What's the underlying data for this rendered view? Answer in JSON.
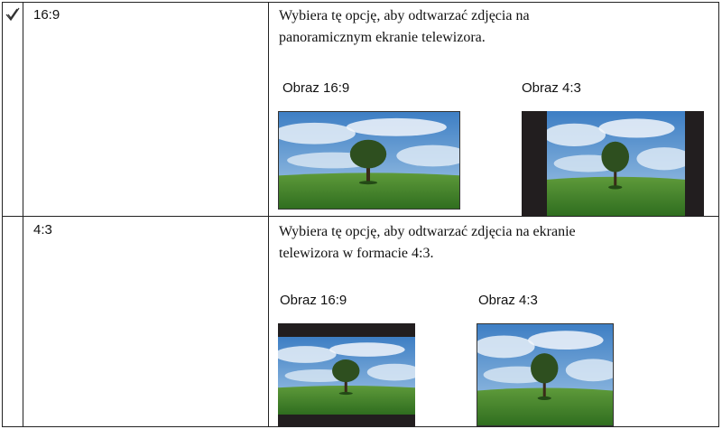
{
  "rows": [
    {
      "label": "16:9",
      "description": [
        "Wybiera tę opcję, aby odtwarzać zdjęcia na",
        "panoramicznym ekranie telewizora."
      ],
      "images": [
        "Obraz 16:9",
        "Obraz 4:3"
      ]
    },
    {
      "label": "4:3",
      "description": [
        "Wybiera tę opcję, aby odtwarzać zdjęcia na ekranie",
        "telewizora w formacie 4:3."
      ],
      "images": [
        "Obraz 16:9",
        "Obraz 4:3"
      ]
    }
  ]
}
